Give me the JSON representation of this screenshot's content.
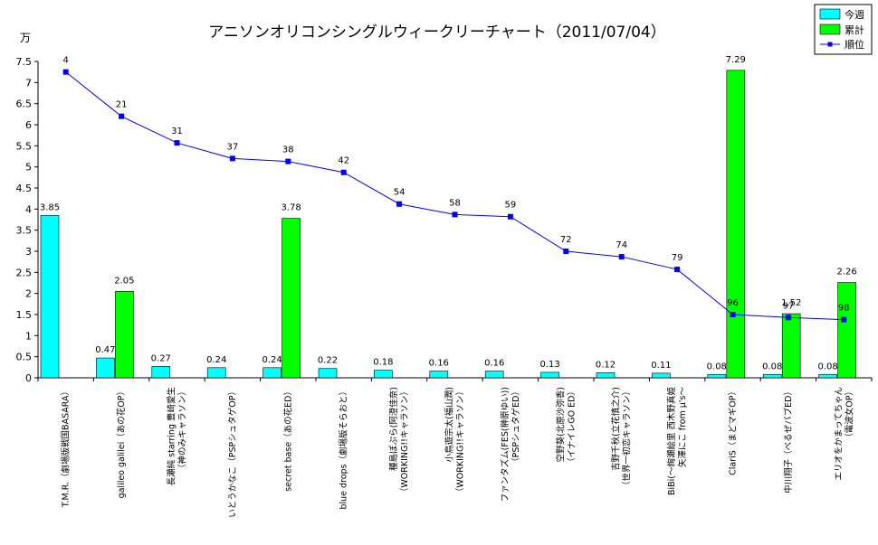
{
  "chart_data": {
    "type": "bar",
    "title": "アニソンオリコンシングルウィークリーチャート（2011/07/04）",
    "ylabel": "万",
    "ylim": [
      0,
      7.5
    ],
    "yticks": [
      "0",
      "0.5",
      "1",
      "1.5",
      "2",
      "2.5",
      "3",
      "3.5",
      "4",
      "4.5",
      "5",
      "5.5",
      "6",
      "6.5",
      "7",
      "7.5"
    ],
    "categories": [
      [
        "T.M.R.（劇場版戦国BASARA）"
      ],
      [
        "galileo galilei（あの花OP）"
      ],
      [
        "長瀬純 starring 豊崎愛生",
        "（神のみキャラソン）"
      ],
      [
        "いとうかなこ（PSPシュタゲOP）"
      ],
      [
        "secret base（あの花ED）"
      ],
      [
        "blue drops（劇場版そらおと）"
      ],
      [
        "種島ぽぷら(阿澄佳奈)",
        "（WORKING!!キャラソン）"
      ],
      [
        "小鳥遊宗太(福山潤)",
        "（WORKING!!キャラソン）"
      ],
      [
        "ファンタズム(FES(榊原ゆい))",
        "（PSPシュタゲED）"
      ],
      [
        "空野葵(北原沙弥香)",
        "（イナイレGO ED）"
      ],
      [
        "吉野千秋(立花慎之介)",
        "（世界一初恋キャラソン）"
      ],
      [
        "BiBi(～絢瀬絵里 西木野真姫",
        "矢澤にこ from μ's～"
      ],
      [
        "ClariS（まどマギOP）"
      ],
      [
        "中川翔子（べるぜバブED）"
      ],
      [
        "エリオをかまってちゃん",
        "（電波女OP）"
      ]
    ],
    "series": [
      {
        "name": "今週",
        "type": "bar",
        "color": "#00ffff",
        "values": [
          3.85,
          0.47,
          0.27,
          0.24,
          0.24,
          0.22,
          0.18,
          0.16,
          0.16,
          0.13,
          0.12,
          0.11,
          0.08,
          0.08,
          0.08
        ]
      },
      {
        "name": "累計",
        "type": "bar",
        "color": "#00ff00",
        "values": [
          null,
          2.05,
          null,
          null,
          3.78,
          null,
          null,
          null,
          null,
          null,
          null,
          null,
          7.29,
          1.52,
          2.26
        ]
      },
      {
        "name": "順位",
        "type": "line",
        "color": "#0000ff",
        "values": [
          4,
          21,
          31,
          37,
          38,
          42,
          54,
          58,
          59,
          72,
          74,
          79,
          96,
          97,
          98
        ]
      }
    ],
    "line_series_scale_values": [
      7.25,
      6.2,
      5.57,
      5.2,
      5.13,
      4.87,
      4.12,
      3.87,
      3.82,
      3.0,
      2.87,
      2.57,
      1.5,
      1.43,
      1.38
    ],
    "legend_position": "top-right",
    "grid": false
  }
}
